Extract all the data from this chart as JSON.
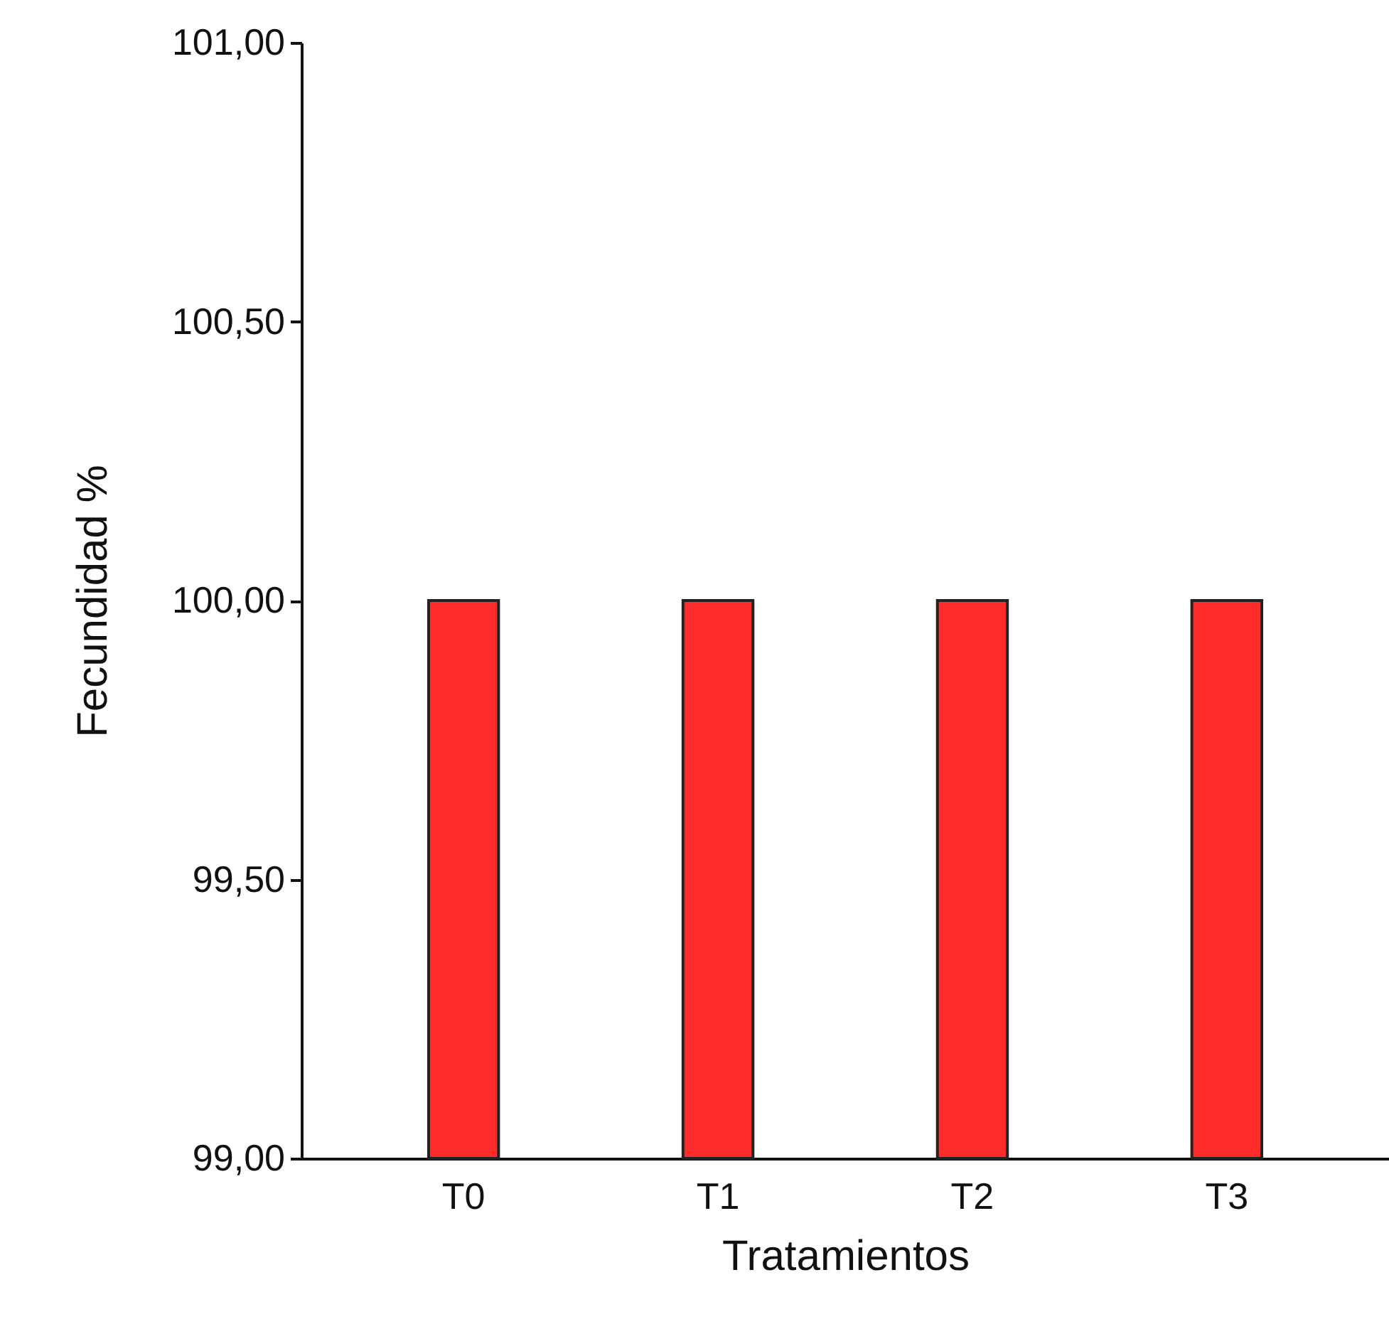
{
  "chart_data": {
    "type": "bar",
    "xlabel": "Tratamientos",
    "ylabel": "Fecundidad %",
    "categories": [
      "T0",
      "T1",
      "T2",
      "T3"
    ],
    "values": [
      100,
      100,
      100,
      100
    ],
    "color": "#ff2a2a",
    "ylim": [
      99,
      101
    ],
    "yticks": [
      {
        "value": 99,
        "label": "99,00"
      },
      {
        "value": 99.5,
        "label": "99,50"
      },
      {
        "value": 100,
        "label": "100,00"
      },
      {
        "value": 100.5,
        "label": "100,50"
      },
      {
        "value": 101,
        "label": "101,00"
      }
    ],
    "grid": false
  }
}
